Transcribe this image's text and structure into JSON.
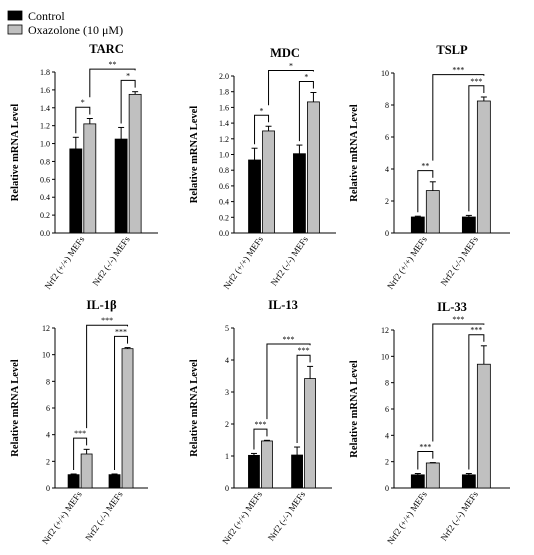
{
  "legend": {
    "items": [
      {
        "label": "Control",
        "color": "#000000"
      },
      {
        "label": "Oxazolone (10 μM)",
        "color": "#c0c0c0"
      }
    ],
    "placement": "top-left"
  },
  "chart_data": [
    {
      "type": "bar",
      "title": "TARC",
      "ylabel": "Relative mRNA Level",
      "categories": [
        "Nrf2 (+/+) MEFs",
        "Nrf2 (-/-) MEFs"
      ],
      "ylim": [
        0,
        1.8
      ],
      "yticks": [
        "0.0",
        "0.2",
        "0.4",
        "0.6",
        "0.8",
        "1.0",
        "1.2",
        "1.4",
        "1.6",
        "1.8"
      ],
      "series": [
        {
          "name": "Control",
          "values": [
            0.94,
            1.05
          ],
          "errors": [
            0.13,
            0.13
          ]
        },
        {
          "name": "Oxazolone (10 μM)",
          "values": [
            1.22,
            1.55
          ],
          "errors": [
            0.06,
            0.03
          ]
        }
      ],
      "significance": [
        {
          "label": "*",
          "type": "within",
          "category": 0
        },
        {
          "label": "*",
          "type": "within",
          "category": 1
        },
        {
          "label": "**",
          "type": "between"
        }
      ]
    },
    {
      "type": "bar",
      "title": "MDC",
      "ylabel": "Relative mRNA Level",
      "categories": [
        "Nrf2 (+/+) MEFs",
        "Nrf2 (-/-) MEFs"
      ],
      "ylim": [
        0,
        2.0
      ],
      "yticks": [
        "0.0",
        "0.2",
        "0.4",
        "0.6",
        "0.8",
        "1.0",
        "1.2",
        "1.4",
        "1.6",
        "1.8",
        "2.0"
      ],
      "series": [
        {
          "name": "Control",
          "values": [
            0.93,
            1.01
          ],
          "errors": [
            0.15,
            0.11
          ]
        },
        {
          "name": "Oxazolone (10 μM)",
          "values": [
            1.3,
            1.67
          ],
          "errors": [
            0.06,
            0.12
          ]
        }
      ],
      "significance": [
        {
          "label": "*",
          "type": "within",
          "category": 0
        },
        {
          "label": "*",
          "type": "within",
          "category": 1
        },
        {
          "label": "*",
          "type": "between"
        }
      ]
    },
    {
      "type": "bar",
      "title": "TSLP",
      "ylabel": "Relative mRNA Level",
      "categories": [
        "Nrf2 (+/+) MEFs",
        "Nrf2 (-/-) MEFs"
      ],
      "ylim": [
        0,
        10
      ],
      "yticks": [
        "0",
        "2",
        "4",
        "6",
        "8",
        "10"
      ],
      "series": [
        {
          "name": "Control",
          "values": [
            1.0,
            1.0
          ],
          "errors": [
            0.05,
            0.1
          ]
        },
        {
          "name": "Oxazolone (10 μM)",
          "values": [
            2.65,
            8.25
          ],
          "errors": [
            0.55,
            0.25
          ]
        }
      ],
      "significance": [
        {
          "label": "**",
          "type": "within",
          "category": 0
        },
        {
          "label": "***",
          "type": "within",
          "category": 1
        },
        {
          "label": "***",
          "type": "between"
        }
      ]
    },
    {
      "type": "bar",
      "title": "IL-1β",
      "ylabel": "Relative mRNA Level",
      "categories": [
        "Nrf2 (+/+) MEFs",
        "Nrf2 (-/-) MEFs"
      ],
      "ylim": [
        0,
        12
      ],
      "yticks": [
        "0",
        "2",
        "4",
        "6",
        "8",
        "10",
        "12"
      ],
      "series": [
        {
          "name": "Control",
          "values": [
            1.0,
            1.0
          ],
          "errors": [
            0.05,
            0.05
          ]
        },
        {
          "name": "Oxazolone (10 μM)",
          "values": [
            2.55,
            10.45
          ],
          "errors": [
            0.35,
            0.08
          ]
        }
      ],
      "significance": [
        {
          "label": "***",
          "type": "within",
          "category": 0
        },
        {
          "label": "***",
          "type": "within",
          "category": 1
        },
        {
          "label": "***",
          "type": "between"
        }
      ]
    },
    {
      "type": "bar",
      "title": "IL-13",
      "ylabel": "Relative mRNA Level",
      "categories": [
        "Nrf2 (+/+) MEFs",
        "Nrf2 (-/-) MEFs"
      ],
      "ylim": [
        0,
        5
      ],
      "yticks": [
        "0",
        "1",
        "2",
        "3",
        "4",
        "5"
      ],
      "series": [
        {
          "name": "Control",
          "values": [
            1.02,
            1.03
          ],
          "errors": [
            0.06,
            0.25
          ]
        },
        {
          "name": "Oxazolone (10 μM)",
          "values": [
            1.47,
            3.42
          ],
          "errors": [
            0.02,
            0.38
          ]
        }
      ],
      "significance": [
        {
          "label": "***",
          "type": "within",
          "category": 0
        },
        {
          "label": "***",
          "type": "within",
          "category": 1
        },
        {
          "label": "***",
          "type": "between"
        }
      ]
    },
    {
      "type": "bar",
      "title": "IL-33",
      "ylabel": "Relative mRNA Level",
      "categories": [
        "Nrf2 (+/+) MEFs",
        "Nrf2 (-/-) MEFs"
      ],
      "ylim": [
        0,
        12
      ],
      "yticks": [
        "0",
        "2",
        "4",
        "6",
        "8",
        "10",
        "12"
      ],
      "series": [
        {
          "name": "Control",
          "values": [
            1.0,
            1.0
          ],
          "errors": [
            0.1,
            0.1
          ]
        },
        {
          "name": "Oxazolone (10 μM)",
          "values": [
            1.9,
            9.4
          ],
          "errors": [
            0.03,
            1.4
          ]
        }
      ],
      "significance": [
        {
          "label": "***",
          "type": "within",
          "category": 0
        },
        {
          "label": "***",
          "type": "within",
          "category": 1
        },
        {
          "label": "***",
          "type": "between"
        }
      ]
    }
  ]
}
